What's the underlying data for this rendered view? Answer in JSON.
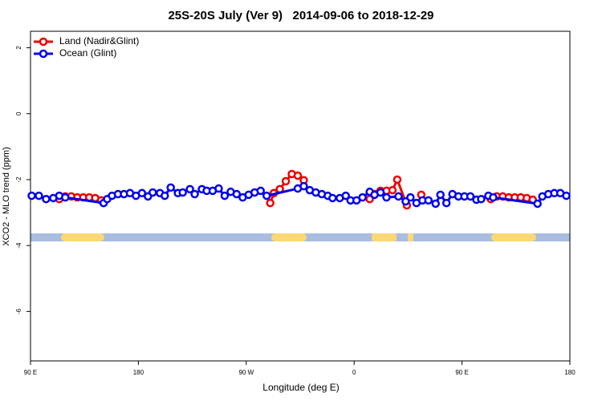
{
  "chart_data": {
    "type": "line",
    "title": "25S-20S July (Ver 9)   2014-09-06 to 2018-12-29",
    "x_label": "Longitude (deg E)",
    "y_label": "XCO2 - MLO trend (ppm)",
    "xlim": [
      90,
      540
    ],
    "ylim": [
      -7.5,
      2.5
    ],
    "xticks": [
      {
        "value": 90,
        "label": "90 E"
      },
      180,
      {
        "value": 270,
        "label": "90 W"
      },
      {
        "value": 360,
        "label": "0"
      },
      {
        "value": 450,
        "label": "90 E"
      },
      {
        "value": 540,
        "label": "180"
      }
    ],
    "yticks": [
      -6,
      -4,
      -2,
      0,
      2
    ],
    "legend": "topleft",
    "series": [
      {
        "name": "Land (Nadir&Glint)",
        "color": "#ee0000",
        "x": [
          114,
          119,
          124,
          129,
          134,
          139,
          144,
          149,
          null,
          290,
          293,
          298,
          303,
          308,
          313,
          318,
          null,
          373,
          377,
          382,
          387,
          392,
          396,
          404,
          null,
          416,
          null,
          474,
          479,
          484,
          489,
          494,
          499,
          504,
          509
        ],
        "values": [
          -2.59,
          -2.51,
          -2.51,
          -2.54,
          -2.54,
          -2.54,
          -2.56,
          -2.63,
          null,
          -2.71,
          -2.41,
          -2.29,
          -2.05,
          -1.83,
          -1.88,
          -2.02,
          null,
          -2.59,
          -2.44,
          -2.34,
          -2.34,
          -2.32,
          -2.0,
          -2.78,
          null,
          -2.46,
          null,
          -2.59,
          -2.51,
          -2.51,
          -2.54,
          -2.54,
          -2.54,
          -2.56,
          -2.61
        ]
      },
      {
        "name": "Ocean (Glint)",
        "color": "#0000ee",
        "x": [
          91,
          97,
          103,
          109,
          114,
          119,
          151,
          154,
          158,
          163,
          168,
          173,
          178,
          183,
          188,
          192,
          198,
          202,
          207,
          213,
          217,
          223,
          227,
          233,
          237,
          242,
          247,
          252,
          257,
          262,
          267,
          272,
          277,
          282,
          287,
          313,
          318,
          323,
          328,
          333,
          338,
          342,
          348,
          353,
          357,
          362,
          367,
          373,
          377,
          382,
          387,
          397,
          403,
          407,
          412,
          417,
          422,
          428,
          432,
          437,
          442,
          447,
          452,
          457,
          462,
          466,
          472,
          476,
          513,
          517,
          522,
          527,
          532,
          537
        ],
        "values": [
          -2.49,
          -2.49,
          -2.59,
          -2.56,
          -2.49,
          -2.54,
          -2.71,
          -2.59,
          -2.49,
          -2.44,
          -2.44,
          -2.41,
          -2.49,
          -2.41,
          -2.51,
          -2.39,
          -2.41,
          -2.49,
          -2.24,
          -2.41,
          -2.39,
          -2.29,
          -2.44,
          -2.29,
          -2.34,
          -2.34,
          -2.27,
          -2.49,
          -2.37,
          -2.44,
          -2.54,
          -2.46,
          -2.39,
          -2.34,
          -2.49,
          -2.27,
          -2.2,
          -2.32,
          -2.39,
          -2.44,
          -2.49,
          -2.56,
          -2.56,
          -2.49,
          -2.63,
          -2.63,
          -2.54,
          -2.37,
          -2.46,
          -2.39,
          -2.54,
          -2.51,
          -2.66,
          -2.54,
          -2.71,
          -2.63,
          -2.63,
          -2.73,
          -2.46,
          -2.71,
          -2.44,
          -2.51,
          -2.51,
          -2.51,
          -2.61,
          -2.59,
          -2.49,
          -2.54,
          -2.73,
          -2.51,
          -2.44,
          -2.41,
          -2.41,
          -2.49
        ]
      }
    ]
  }
}
